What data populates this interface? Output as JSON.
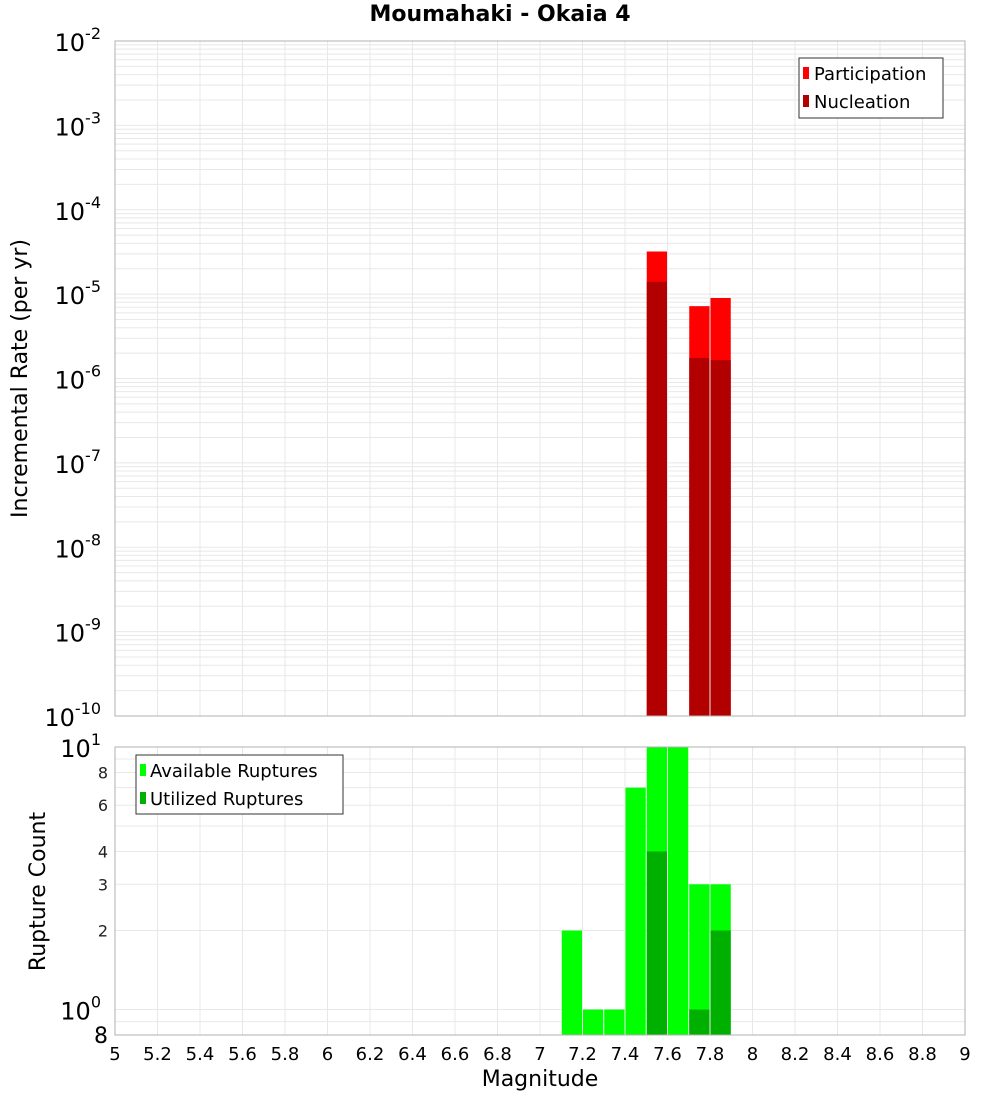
{
  "title": "Moumahaki - Okaia 4",
  "colors": {
    "participation": "#ff0000",
    "nucleation": "#b20000",
    "available": "#00ff00",
    "utilized": "#00b000",
    "grid": "#e8e8e8",
    "axis_border": "#b0b0b0"
  },
  "chart_data": [
    {
      "type": "bar",
      "title": "Moumahaki - Okaia 4",
      "xlabel": "Magnitude",
      "ylabel": "Incremental Rate (per yr)",
      "yscale": "log",
      "xlim": [
        5,
        9
      ],
      "ylim": [
        1e-10,
        0.01
      ],
      "x_ticks": [
        "5",
        "5.2",
        "5.4",
        "5.6",
        "5.8",
        "6",
        "6.2",
        "6.4",
        "6.6",
        "6.8",
        "7",
        "7.2",
        "7.4",
        "7.6",
        "7.8",
        "8",
        "8.2",
        "8.4",
        "8.6",
        "8.8",
        "9"
      ],
      "y_tick_labels": [
        "10^-2",
        "10^-3",
        "10^-4",
        "10^-5",
        "10^-6",
        "10^-7",
        "10^-8",
        "10^-9",
        "10^-10"
      ],
      "bar_width": 0.1,
      "x": [
        7.55,
        7.75,
        7.85
      ],
      "series": [
        {
          "name": "Participation",
          "values": [
            3.2e-05,
            7.2e-06,
            9e-06
          ]
        },
        {
          "name": "Nucleation",
          "values": [
            1.4e-05,
            1.75e-06,
            1.65e-06
          ]
        }
      ],
      "legend": [
        "Participation",
        "Nucleation"
      ],
      "legend_position": "top-right",
      "grid": true
    },
    {
      "type": "bar",
      "xlabel": "Magnitude",
      "ylabel": "Rupture Count",
      "yscale": "log",
      "xlim": [
        5,
        9
      ],
      "ylim": [
        0.8,
        10
      ],
      "y_tick_labels": [
        "10^1",
        "8",
        "6",
        "4",
        "3",
        "2",
        "10^0",
        "8"
      ],
      "bar_width": 0.1,
      "x": [
        7.15,
        7.25,
        7.35,
        7.45,
        7.55,
        7.65,
        7.75,
        7.85
      ],
      "series": [
        {
          "name": "Available Ruptures",
          "values": [
            2,
            1,
            1,
            7,
            10,
            10,
            3,
            3
          ]
        },
        {
          "name": "Utilized Ruptures",
          "values": [
            0,
            0,
            0,
            0,
            4,
            0,
            1,
            2
          ]
        }
      ],
      "legend": [
        "Available Ruptures",
        "Utilized Ruptures"
      ],
      "legend_position": "top-left",
      "grid": true
    }
  ],
  "labels": {
    "top_ylabel": "Incremental Rate (per yr)",
    "bottom_ylabel": "Rupture Count",
    "xlabel": "Magnitude"
  }
}
